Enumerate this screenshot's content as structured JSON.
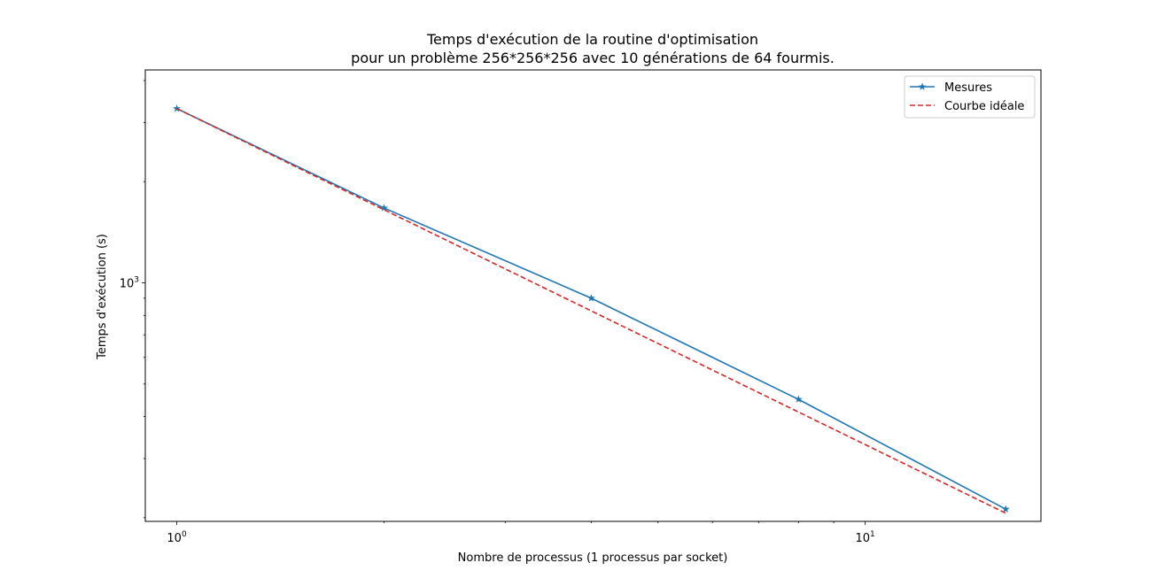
{
  "chart_data": {
    "type": "line",
    "title_line1": "Temps d'exécution de la routine d'optimisation",
    "title_line2": "pour un problème 256*256*256 avec 10 générations de 64 fourmis.",
    "xlabel": "Nombre de processus (1 processus par socket)",
    "ylabel": "Temps d'exécution (s)",
    "xscale": "log",
    "yscale": "log",
    "xlim": [
      0.9,
      18
    ],
    "ylim": [
      195,
      4300
    ],
    "x_ticks": [
      {
        "value": 1,
        "base": "10",
        "exp": "0"
      },
      {
        "value": 10,
        "base": "10",
        "exp": "1"
      }
    ],
    "y_ticks": [
      {
        "value": 1000,
        "base": "10",
        "exp": "3"
      }
    ],
    "legend_position": "top-right",
    "grid": false,
    "series": [
      {
        "name": "Mesures",
        "color": "#1f77b4",
        "style": "solid",
        "marker": "star",
        "x": [
          1,
          2,
          4,
          8,
          16
        ],
        "y": [
          3300,
          1670,
          900,
          450,
          212
        ]
      },
      {
        "name": "Courbe idéale",
        "color": "#d62728",
        "style": "dashed",
        "marker": "none",
        "x": [
          1,
          2,
          4,
          8,
          16
        ],
        "y": [
          3300,
          1650,
          825,
          412.5,
          206.25
        ]
      }
    ]
  }
}
